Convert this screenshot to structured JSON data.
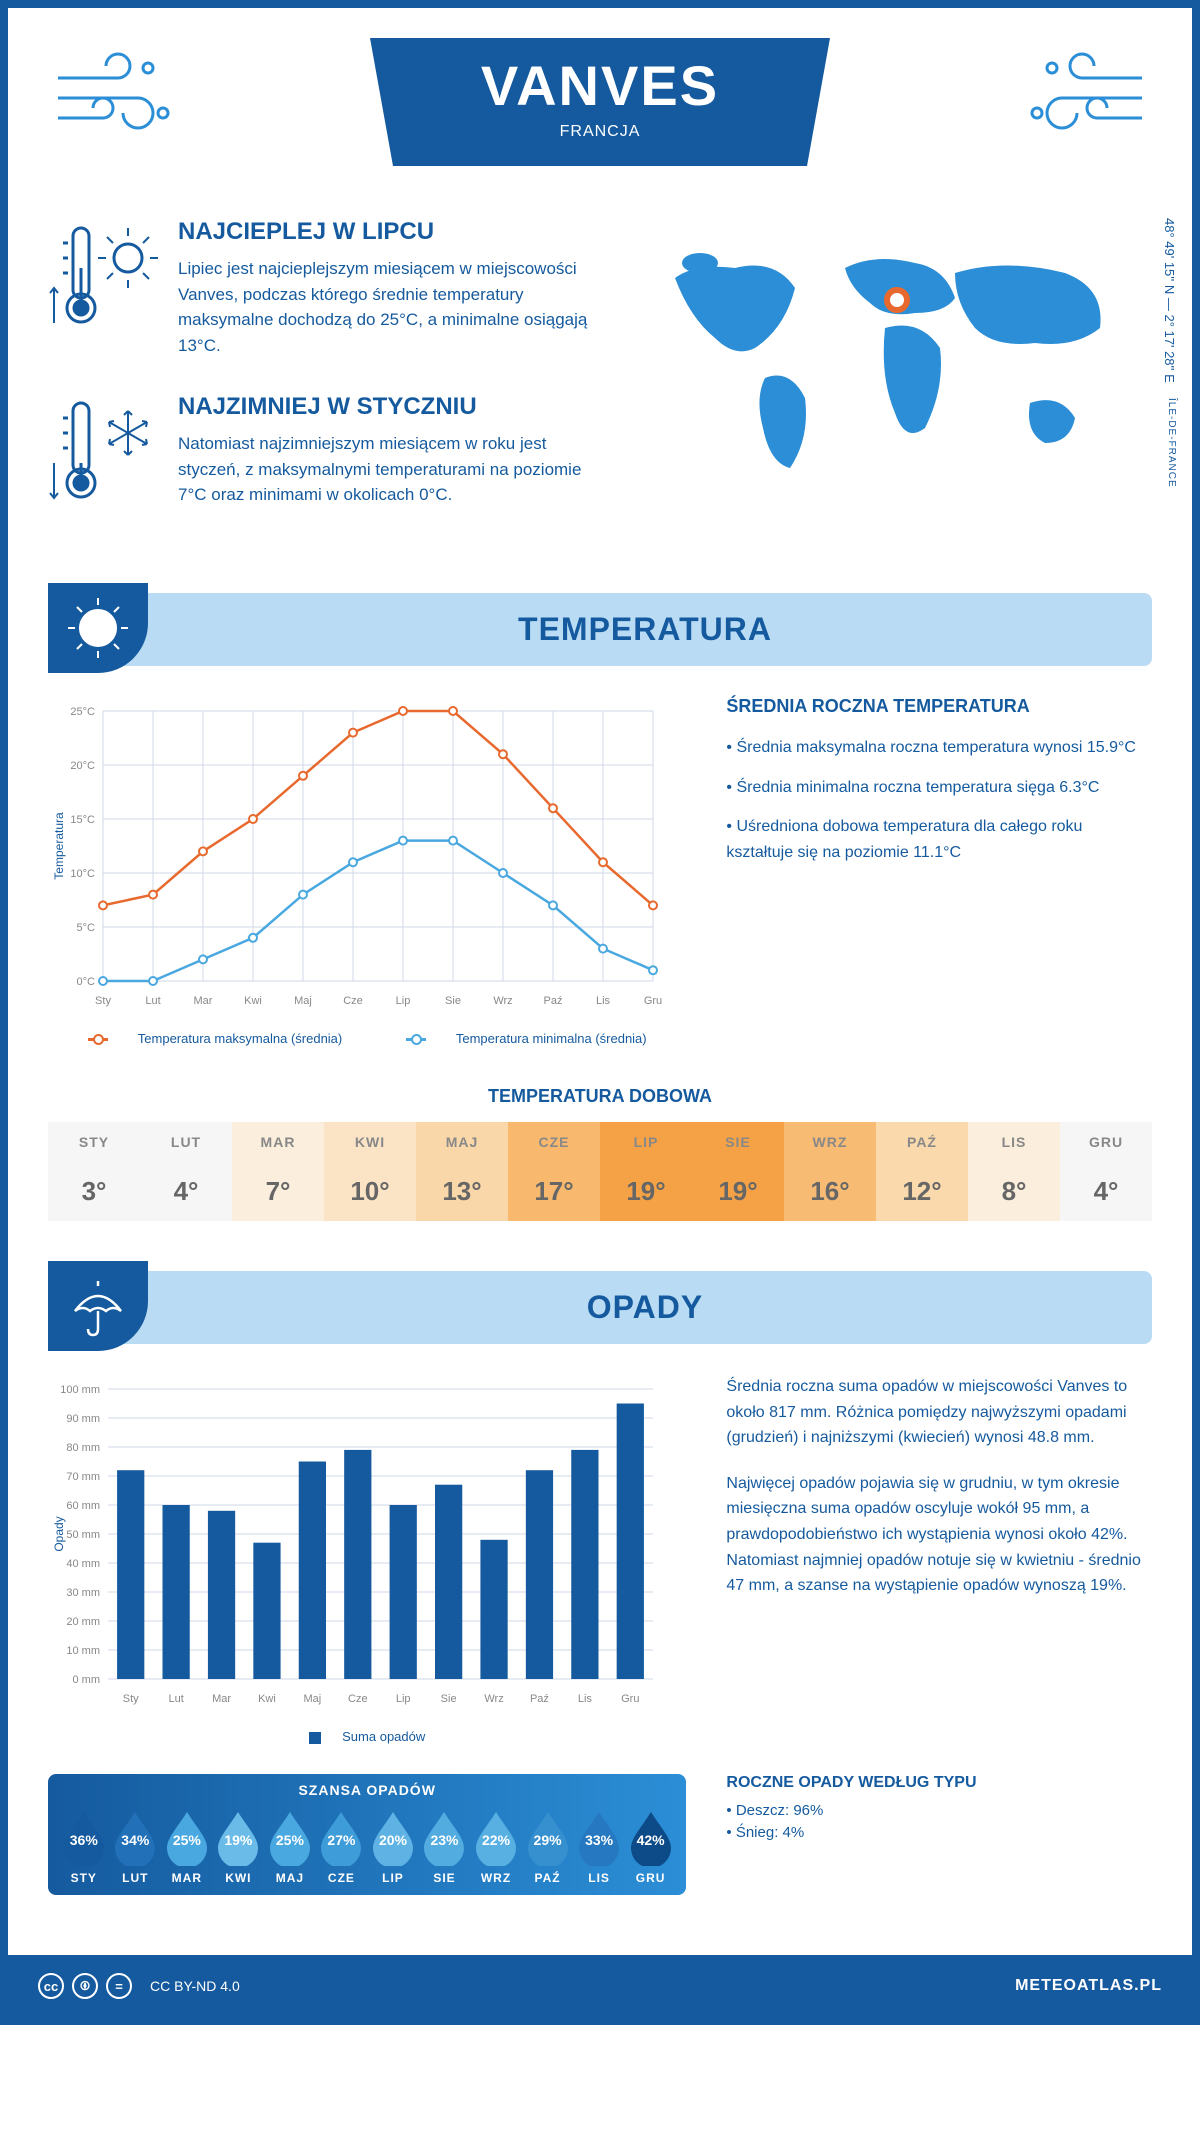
{
  "header": {
    "city": "VANVES",
    "country": "FRANCJA",
    "coords": "48° 49' 15'' N — 2° 17' 28'' E",
    "region": "ÎLE-DE-FRANCE"
  },
  "facts": {
    "warm": {
      "title": "NAJCIEPLEJ W LIPCU",
      "text": "Lipiec jest najcieplejszym miesiącem w miejscowości Vanves, podczas którego średnie temperatury maksymalne dochodzą do 25°C, a minimalne osiągają 13°C."
    },
    "cold": {
      "title": "NAJZIMNIEJ W STYCZNIU",
      "text": "Natomiast najzimniejszym miesiącem w roku jest styczeń, z maksymalnymi temperaturami na poziomie 7°C oraz minimami w okolicach 0°C."
    }
  },
  "temp_section_title": "TEMPERATURA",
  "temp_chart": {
    "type": "line",
    "months": [
      "Sty",
      "Lut",
      "Mar",
      "Kwi",
      "Maj",
      "Cze",
      "Lip",
      "Sie",
      "Wrz",
      "Paź",
      "Lis",
      "Gru"
    ],
    "max_series": {
      "label": "Temperatura maksymalna (średnia)",
      "color": "#e8692e",
      "values": [
        7,
        8,
        12,
        15,
        19,
        23,
        25,
        25,
        21,
        16,
        11,
        7
      ]
    },
    "min_series": {
      "label": "Temperatura minimalna (średnia)",
      "color": "#4aa8e0",
      "values": [
        0,
        0,
        2,
        4,
        8,
        11,
        13,
        13,
        10,
        7,
        3,
        1
      ]
    },
    "y_axis": {
      "min": 0,
      "max": 25,
      "step": 5,
      "unit": "°C",
      "title": "Temperatura"
    },
    "grid_color": "#cfd8e8",
    "bg": "#ffffff"
  },
  "temp_info": {
    "title": "ŚREDNIA ROCZNA TEMPERATURA",
    "b1": "• Średnia maksymalna roczna temperatura wynosi 15.9°C",
    "b2": "• Średnia minimalna roczna temperatura sięga 6.3°C",
    "b3": "• Uśredniona dobowa temperatura dla całego roku kształtuje się na poziomie 11.1°C"
  },
  "daily_temp": {
    "title": "TEMPERATURA DOBOWA",
    "months": [
      "STY",
      "LUT",
      "MAR",
      "KWI",
      "MAJ",
      "CZE",
      "LIP",
      "SIE",
      "WRZ",
      "PAŹ",
      "LIS",
      "GRU"
    ],
    "values": [
      "3°",
      "4°",
      "7°",
      "10°",
      "13°",
      "17°",
      "19°",
      "19°",
      "16°",
      "12°",
      "8°",
      "4°"
    ],
    "colors": [
      "#f6f6f6",
      "#f6f6f6",
      "#fceedd",
      "#fbe4c6",
      "#fad7a8",
      "#f8b96f",
      "#f5a247",
      "#f5a247",
      "#f8bb73",
      "#fad9ac",
      "#fceedd",
      "#f6f6f6"
    ]
  },
  "precip_section_title": "OPADY",
  "precip_chart": {
    "type": "bar",
    "months": [
      "Sty",
      "Lut",
      "Mar",
      "Kwi",
      "Maj",
      "Cze",
      "Lip",
      "Sie",
      "Wrz",
      "Paź",
      "Lis",
      "Gru"
    ],
    "values": [
      72,
      60,
      58,
      47,
      75,
      79,
      60,
      67,
      48,
      72,
      79,
      95
    ],
    "bar_color": "#155a9e",
    "y_axis": {
      "min": 0,
      "max": 100,
      "step": 10,
      "unit": " mm",
      "title": "Opady"
    },
    "legend": "Suma opadów",
    "grid_color": "#cfd8e8"
  },
  "precip_info": {
    "p1": "Średnia roczna suma opadów w miejscowości Vanves to około 817 mm. Różnica pomiędzy najwyższymi opadami (grudzień) i najniższymi (kwiecień) wynosi 48.8 mm.",
    "p2": "Najwięcej opadów pojawia się w grudniu, w tym okresie miesięczna suma opadów oscyluje wokół 95 mm, a prawdopodobieństwo ich wystąpienia wynosi około 42%. Natomiast najmniej opadów notuje się w kwietniu - średnio 47 mm, a szanse na wystąpienie opadów wynoszą 19%."
  },
  "chance": {
    "title": "SZANSA OPADÓW",
    "months": [
      "STY",
      "LUT",
      "MAR",
      "KWI",
      "MAJ",
      "CZE",
      "LIP",
      "SIE",
      "WRZ",
      "PAŹ",
      "LIS",
      "GRU"
    ],
    "values": [
      "36%",
      "34%",
      "25%",
      "19%",
      "25%",
      "27%",
      "20%",
      "23%",
      "22%",
      "29%",
      "33%",
      "42%"
    ],
    "drop_colors": [
      "#155a9e",
      "#2170b8",
      "#4aa8e0",
      "#6bbbe8",
      "#4aa8e0",
      "#3e9cd8",
      "#5fb3e4",
      "#52ace0",
      "#58b0e2",
      "#3690d0",
      "#2678c0",
      "#0d4a88"
    ]
  },
  "precip_type": {
    "title": "ROCZNE OPADY WEDŁUG TYPU",
    "rain": "• Deszcz: 96%",
    "snow": "• Śnieg: 4%"
  },
  "footer": {
    "license": "CC BY-ND 4.0",
    "site": "METEOATLAS.PL"
  }
}
